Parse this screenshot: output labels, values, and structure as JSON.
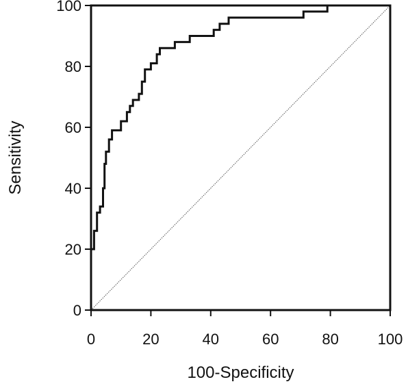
{
  "chart_data": {
    "type": "line",
    "title": "",
    "xlabel": "100-Specificity",
    "ylabel": "Sensitivity",
    "xlim": [
      0,
      100
    ],
    "ylim": [
      0,
      100
    ],
    "xticks": [
      0,
      20,
      40,
      60,
      80,
      100
    ],
    "yticks": [
      0,
      20,
      40,
      60,
      80,
      100
    ],
    "grid": false,
    "legend": "none",
    "series": [
      {
        "type": "step",
        "color": "#111111",
        "points": [
          [
            0,
            0
          ],
          [
            0,
            20
          ],
          [
            1,
            20
          ],
          [
            1,
            26
          ],
          [
            2,
            26
          ],
          [
            2,
            32
          ],
          [
            3,
            32
          ],
          [
            3,
            34
          ],
          [
            4,
            34
          ],
          [
            4,
            40
          ],
          [
            4.5,
            40
          ],
          [
            4.5,
            48
          ],
          [
            5,
            48
          ],
          [
            5,
            52
          ],
          [
            6,
            52
          ],
          [
            6,
            56
          ],
          [
            7,
            56
          ],
          [
            7,
            59
          ],
          [
            10,
            59
          ],
          [
            10,
            62
          ],
          [
            12,
            62
          ],
          [
            12,
            65
          ],
          [
            13,
            65
          ],
          [
            13,
            67
          ],
          [
            14,
            67
          ],
          [
            14,
            69
          ],
          [
            16,
            69
          ],
          [
            16,
            71
          ],
          [
            17,
            71
          ],
          [
            17,
            75
          ],
          [
            18,
            75
          ],
          [
            18,
            79
          ],
          [
            20,
            79
          ],
          [
            20,
            81
          ],
          [
            22,
            81
          ],
          [
            22,
            84
          ],
          [
            23,
            84
          ],
          [
            23,
            86
          ],
          [
            28,
            86
          ],
          [
            28,
            88
          ],
          [
            33,
            88
          ],
          [
            33,
            90
          ],
          [
            41,
            90
          ],
          [
            41,
            92
          ],
          [
            43,
            92
          ],
          [
            43,
            94
          ],
          [
            46,
            94
          ],
          [
            46,
            96
          ],
          [
            71,
            96
          ],
          [
            71,
            98
          ],
          [
            79,
            98
          ],
          [
            79,
            100
          ],
          [
            100,
            100
          ]
        ]
      },
      {
        "type": "reference",
        "style": "dotted",
        "color": "#555555",
        "points": [
          [
            0,
            0
          ],
          [
            100,
            100
          ]
        ]
      }
    ]
  }
}
